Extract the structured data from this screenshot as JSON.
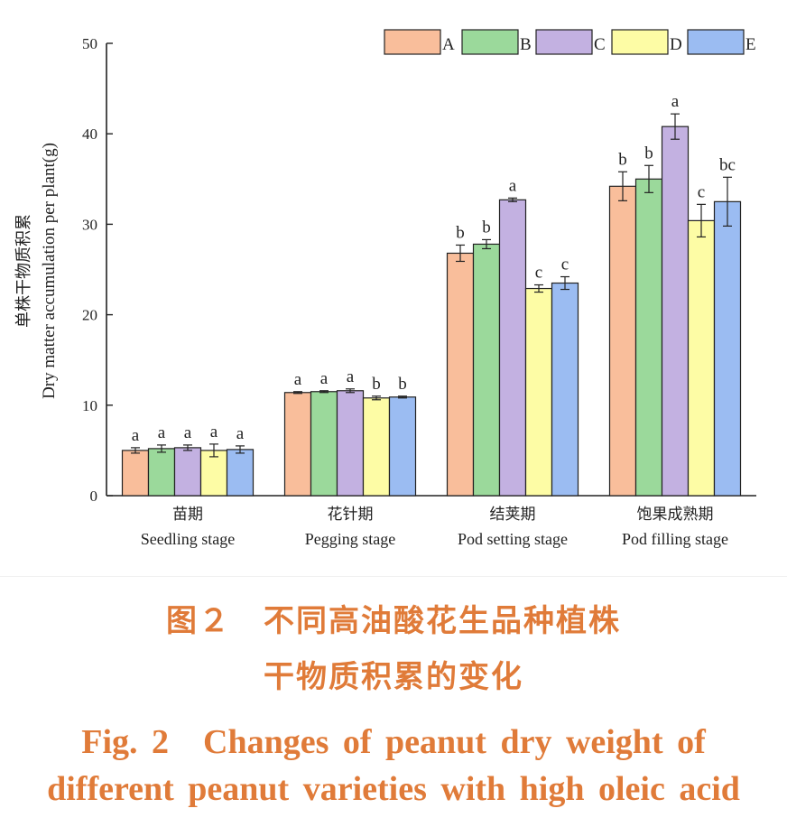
{
  "chart_data": {
    "type": "bar",
    "ylabel_cn": "单株干物质积累",
    "ylabel_en": "Dry matter accumulation per plant(g)",
    "ylim": [
      0,
      50
    ],
    "yticks": [
      "0",
      "10",
      "20",
      "30",
      "40",
      "50"
    ],
    "categories_cn": [
      "苗期",
      "花针期",
      "结荚期",
      "饱果成熟期"
    ],
    "categories": [
      "Seedling stage",
      "Pegging stage",
      "Pod setting stage",
      "Pod filling stage"
    ],
    "legend_position": "top-right",
    "series": [
      {
        "name": "A",
        "color": "#f9be9b",
        "values": [
          5.0,
          11.4,
          26.8,
          34.2
        ],
        "errors": [
          0.3,
          0.1,
          0.9,
          1.6
        ],
        "letters": [
          "a",
          "a",
          "b",
          "b"
        ]
      },
      {
        "name": "B",
        "color": "#9bd99b",
        "values": [
          5.2,
          11.5,
          27.8,
          35.0
        ],
        "errors": [
          0.4,
          0.1,
          0.5,
          1.5
        ],
        "letters": [
          "a",
          "a",
          "b",
          "b"
        ]
      },
      {
        "name": "C",
        "color": "#c3b1e1",
        "values": [
          5.3,
          11.6,
          32.7,
          40.8
        ],
        "errors": [
          0.3,
          0.2,
          0.2,
          1.4
        ],
        "letters": [
          "a",
          "a",
          "a",
          "a"
        ]
      },
      {
        "name": "D",
        "color": "#fdfca5",
        "values": [
          5.0,
          10.8,
          22.9,
          30.4
        ],
        "errors": [
          0.7,
          0.2,
          0.4,
          1.8
        ],
        "letters": [
          "a",
          "b",
          "c",
          "c"
        ]
      },
      {
        "name": "E",
        "color": "#9bbcf2",
        "values": [
          5.1,
          10.9,
          23.5,
          32.5
        ],
        "errors": [
          0.4,
          0.1,
          0.7,
          2.7
        ],
        "letters": [
          "a",
          "b",
          "c",
          "bc"
        ]
      }
    ]
  },
  "caption": {
    "cn_line1": "图２　不同高油酸花生品种植株",
    "cn_line2": "干物质积累的变化",
    "en_line1": "Fig. 2　Changes of peanut dry weight of",
    "en_line2": "different peanut varieties with high oleic acid"
  }
}
